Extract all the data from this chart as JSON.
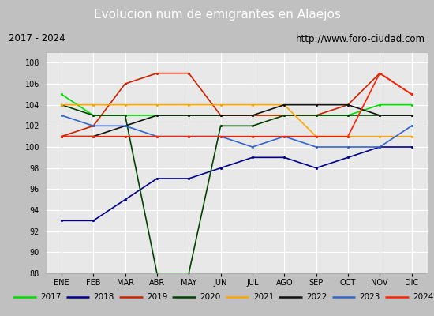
{
  "title": "Evolucion num de emigrantes en Alaejos",
  "subtitle_left": "2017 - 2024",
  "subtitle_right": "http://www.foro-ciudad.com",
  "months": [
    "ENE",
    "FEB",
    "MAR",
    "ABR",
    "MAY",
    "JUN",
    "JUL",
    "AGO",
    "SEP",
    "OCT",
    "NOV",
    "DIC"
  ],
  "ylim": [
    88,
    109
  ],
  "yticks": [
    88,
    90,
    92,
    94,
    96,
    98,
    100,
    102,
    104,
    106,
    108
  ],
  "series": {
    "2017": {
      "color": "#00dd00",
      "values": [
        105,
        103,
        103,
        103,
        103,
        103,
        103,
        103,
        103,
        103,
        104,
        104
      ]
    },
    "2018": {
      "color": "#00008b",
      "values": [
        93,
        93,
        95,
        97,
        97,
        98,
        99,
        99,
        98,
        99,
        100,
        100
      ]
    },
    "2019": {
      "color": "#cc2200",
      "values": [
        101,
        102,
        106,
        107,
        107,
        103,
        103,
        103,
        103,
        104,
        107,
        105
      ]
    },
    "2020": {
      "color": "#004400",
      "values": [
        104,
        103,
        103,
        88,
        88,
        102,
        102,
        103,
        103,
        103,
        103,
        103
      ]
    },
    "2021": {
      "color": "#ffa500",
      "values": [
        104,
        104,
        104,
        104,
        104,
        104,
        104,
        104,
        101,
        101,
        101,
        101
      ]
    },
    "2022": {
      "color": "#111111",
      "values": [
        101,
        101,
        102,
        103,
        103,
        103,
        103,
        104,
        104,
        104,
        103,
        103
      ]
    },
    "2023": {
      "color": "#3366cc",
      "values": [
        103,
        102,
        102,
        101,
        101,
        101,
        100,
        101,
        100,
        100,
        100,
        102
      ]
    },
    "2024": {
      "color": "#ff2200",
      "values": [
        101,
        101,
        101,
        101,
        101,
        101,
        101,
        101,
        101,
        101,
        107,
        105
      ]
    }
  },
  "title_bg": "#4472c4",
  "title_color": "white",
  "subtitle_bg": "#d0d0d0",
  "plot_bg": "#e8e8e8",
  "grid_color": "white",
  "legend_years": [
    "2017",
    "2018",
    "2019",
    "2020",
    "2021",
    "2022",
    "2023",
    "2024"
  ],
  "fig_width": 5.5,
  "fig_height": 4.0,
  "dpi": 100
}
